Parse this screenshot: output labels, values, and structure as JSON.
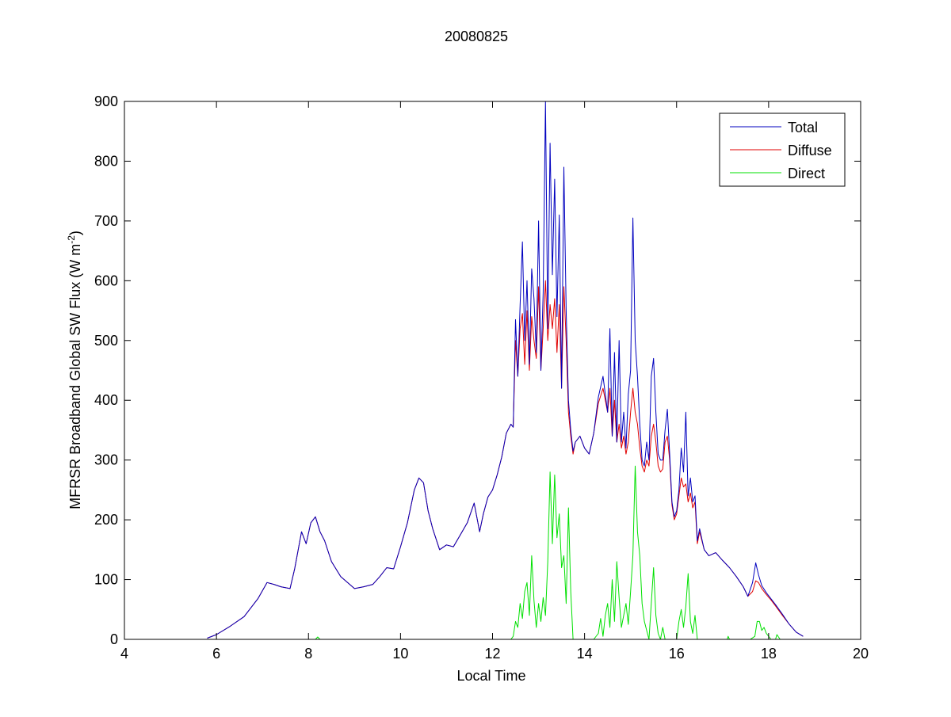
{
  "chart_data": {
    "type": "line",
    "title": "20080825",
    "xlabel": "Local Time",
    "ylabel_main": "MFRSR Broadband Global SW Flux (W m",
    "ylabel_sup": "-2",
    "ylabel_tail": ")",
    "xlim": [
      4,
      20
    ],
    "ylim": [
      0,
      900
    ],
    "xticks": [
      4,
      6,
      8,
      10,
      12,
      14,
      16,
      18,
      20
    ],
    "yticks": [
      0,
      100,
      200,
      300,
      400,
      500,
      600,
      700,
      800,
      900
    ],
    "grid": false,
    "legend_position": "top-right",
    "colors": {
      "Total": "#0000bf",
      "Diffuse": "#e00000",
      "Direct": "#00e000"
    },
    "series": [
      {
        "name": "Total",
        "x": [
          5.8,
          6.0,
          6.3,
          6.6,
          6.9,
          7.1,
          7.25,
          7.4,
          7.6,
          7.7,
          7.85,
          7.95,
          8.05,
          8.15,
          8.25,
          8.35,
          8.5,
          8.7,
          9.0,
          9.2,
          9.4,
          9.55,
          9.7,
          9.85,
          10.0,
          10.15,
          10.3,
          10.4,
          10.5,
          10.6,
          10.7,
          10.85,
          11.0,
          11.15,
          11.3,
          11.45,
          11.6,
          11.72,
          11.8,
          11.9,
          12.0,
          12.1,
          12.2,
          12.3,
          12.4,
          12.45,
          12.5,
          12.55,
          12.6,
          12.65,
          12.7,
          12.75,
          12.8,
          12.85,
          12.9,
          12.95,
          13.0,
          13.05,
          13.1,
          13.15,
          13.2,
          13.25,
          13.3,
          13.35,
          13.4,
          13.45,
          13.5,
          13.55,
          13.6,
          13.65,
          13.7,
          13.75,
          13.8,
          13.9,
          14.0,
          14.1,
          14.2,
          14.3,
          14.4,
          14.5,
          14.55,
          14.6,
          14.65,
          14.7,
          14.75,
          14.8,
          14.85,
          14.9,
          14.95,
          15.0,
          15.05,
          15.1,
          15.15,
          15.2,
          15.25,
          15.3,
          15.35,
          15.4,
          15.45,
          15.5,
          15.55,
          15.6,
          15.65,
          15.7,
          15.75,
          15.8,
          15.85,
          15.9,
          15.95,
          16.0,
          16.05,
          16.1,
          16.15,
          16.2,
          16.25,
          16.3,
          16.35,
          16.4,
          16.45,
          16.5,
          16.6,
          16.7,
          16.85,
          17.0,
          17.15,
          17.3,
          17.45,
          17.55,
          17.65,
          17.72,
          17.78,
          17.85,
          17.95,
          18.05,
          18.15,
          18.3,
          18.45,
          18.6,
          18.75
        ],
        "y": [
          2,
          8,
          22,
          38,
          68,
          95,
          92,
          88,
          85,
          118,
          180,
          160,
          195,
          205,
          180,
          165,
          130,
          105,
          85,
          88,
          92,
          105,
          120,
          118,
          155,
          195,
          250,
          270,
          262,
          215,
          185,
          150,
          158,
          155,
          175,
          195,
          228,
          180,
          210,
          238,
          250,
          275,
          305,
          345,
          360,
          355,
          535,
          440,
          560,
          665,
          500,
          600,
          460,
          620,
          570,
          480,
          700,
          450,
          580,
          900,
          520,
          830,
          610,
          770,
          540,
          710,
          420,
          790,
          550,
          400,
          350,
          315,
          330,
          340,
          320,
          310,
          345,
          405,
          440,
          380,
          520,
          340,
          480,
          330,
          500,
          330,
          380,
          320,
          410,
          450,
          705,
          500,
          440,
          360,
          300,
          290,
          330,
          300,
          440,
          470,
          380,
          310,
          300,
          300,
          350,
          385,
          310,
          230,
          205,
          215,
          250,
          320,
          280,
          380,
          240,
          270,
          230,
          240,
          165,
          185,
          150,
          140,
          145,
          132,
          120,
          105,
          88,
          72,
          95,
          128,
          108,
          90,
          78,
          68,
          58,
          42,
          25,
          12,
          5
        ]
      },
      {
        "name": "Diffuse",
        "x": [
          5.8,
          6.0,
          6.3,
          6.6,
          6.9,
          7.1,
          7.25,
          7.4,
          7.6,
          7.7,
          7.85,
          7.95,
          8.05,
          8.15,
          8.25,
          8.35,
          8.5,
          8.7,
          9.0,
          9.2,
          9.4,
          9.55,
          9.7,
          9.85,
          10.0,
          10.15,
          10.3,
          10.4,
          10.5,
          10.6,
          10.7,
          10.85,
          11.0,
          11.15,
          11.3,
          11.45,
          11.6,
          11.72,
          11.8,
          11.9,
          12.0,
          12.1,
          12.2,
          12.3,
          12.4,
          12.45,
          12.5,
          12.55,
          12.6,
          12.65,
          12.7,
          12.75,
          12.8,
          12.85,
          12.9,
          12.95,
          13.0,
          13.05,
          13.1,
          13.15,
          13.2,
          13.25,
          13.3,
          13.35,
          13.4,
          13.45,
          13.5,
          13.55,
          13.6,
          13.65,
          13.7,
          13.75,
          13.8,
          13.9,
          14.0,
          14.1,
          14.2,
          14.3,
          14.4,
          14.5,
          14.55,
          14.6,
          14.65,
          14.7,
          14.75,
          14.8,
          14.85,
          14.9,
          14.95,
          15.0,
          15.05,
          15.1,
          15.15,
          15.2,
          15.25,
          15.3,
          15.35,
          15.4,
          15.45,
          15.5,
          15.55,
          15.6,
          15.65,
          15.7,
          15.75,
          15.8,
          15.85,
          15.9,
          15.95,
          16.0,
          16.05,
          16.1,
          16.15,
          16.2,
          16.25,
          16.3,
          16.35,
          16.4,
          16.45,
          16.5,
          16.6,
          16.7,
          16.85,
          17.0,
          17.15,
          17.3,
          17.45,
          17.55,
          17.65,
          17.72,
          17.78,
          17.85,
          17.95,
          18.05,
          18.15,
          18.3,
          18.45,
          18.6,
          18.75
        ],
        "y": [
          2,
          8,
          22,
          38,
          68,
          95,
          92,
          88,
          85,
          118,
          180,
          160,
          195,
          205,
          180,
          165,
          130,
          105,
          85,
          88,
          92,
          105,
          120,
          118,
          155,
          195,
          250,
          270,
          262,
          215,
          185,
          150,
          158,
          155,
          175,
          195,
          228,
          180,
          210,
          238,
          250,
          275,
          305,
          345,
          360,
          355,
          500,
          440,
          520,
          545,
          460,
          550,
          450,
          540,
          500,
          470,
          590,
          450,
          520,
          600,
          500,
          560,
          520,
          570,
          480,
          560,
          420,
          590,
          500,
          380,
          340,
          310,
          330,
          340,
          320,
          310,
          345,
          395,
          420,
          380,
          420,
          340,
          400,
          330,
          360,
          320,
          340,
          310,
          330,
          380,
          420,
          380,
          360,
          320,
          290,
          280,
          300,
          290,
          340,
          360,
          330,
          290,
          280,
          285,
          330,
          340,
          300,
          225,
          200,
          210,
          240,
          270,
          255,
          260,
          230,
          245,
          220,
          230,
          160,
          180,
          150,
          140,
          145,
          132,
          120,
          105,
          88,
          72,
          80,
          98,
          95,
          85,
          75,
          66,
          56,
          40,
          25,
          12,
          5
        ]
      },
      {
        "name": "Direct",
        "x": [
          5.8,
          8.15,
          8.2,
          8.25,
          12.4,
          12.45,
          12.5,
          12.55,
          12.6,
          12.65,
          12.7,
          12.75,
          12.8,
          12.85,
          12.9,
          12.95,
          13.0,
          13.05,
          13.1,
          13.15,
          13.2,
          13.25,
          13.3,
          13.35,
          13.4,
          13.45,
          13.5,
          13.55,
          13.6,
          13.65,
          13.7,
          13.75,
          13.8,
          14.2,
          14.3,
          14.35,
          14.4,
          14.45,
          14.5,
          14.55,
          14.6,
          14.65,
          14.7,
          14.75,
          14.8,
          14.85,
          14.9,
          14.95,
          15.0,
          15.05,
          15.1,
          15.15,
          15.2,
          15.25,
          15.3,
          15.35,
          15.4,
          15.45,
          15.5,
          15.55,
          15.6,
          15.65,
          15.7,
          15.75,
          15.8,
          15.85,
          15.9,
          16.0,
          16.05,
          16.1,
          16.15,
          16.2,
          16.25,
          16.3,
          16.35,
          16.4,
          16.45,
          16.5,
          17.1,
          17.12,
          17.15,
          17.6,
          17.7,
          17.75,
          17.8,
          17.85,
          17.9,
          17.95,
          18.0,
          18.05,
          18.15,
          18.18,
          18.25,
          18.5
        ],
        "y": [
          0,
          0,
          4,
          0,
          0,
          5,
          30,
          20,
          60,
          35,
          80,
          95,
          40,
          140,
          65,
          20,
          60,
          30,
          70,
          40,
          130,
          280,
          160,
          275,
          170,
          210,
          120,
          140,
          60,
          220,
          80,
          0,
          0,
          0,
          10,
          35,
          5,
          40,
          60,
          20,
          100,
          30,
          130,
          70,
          20,
          40,
          60,
          25,
          80,
          140,
          290,
          180,
          140,
          60,
          30,
          15,
          0,
          60,
          120,
          40,
          10,
          0,
          20,
          0,
          0,
          0,
          0,
          0,
          30,
          50,
          20,
          55,
          110,
          30,
          10,
          40,
          0,
          0,
          0,
          5,
          0,
          0,
          5,
          30,
          30,
          15,
          20,
          10,
          5,
          0,
          0,
          8,
          0,
          0
        ]
      }
    ]
  }
}
